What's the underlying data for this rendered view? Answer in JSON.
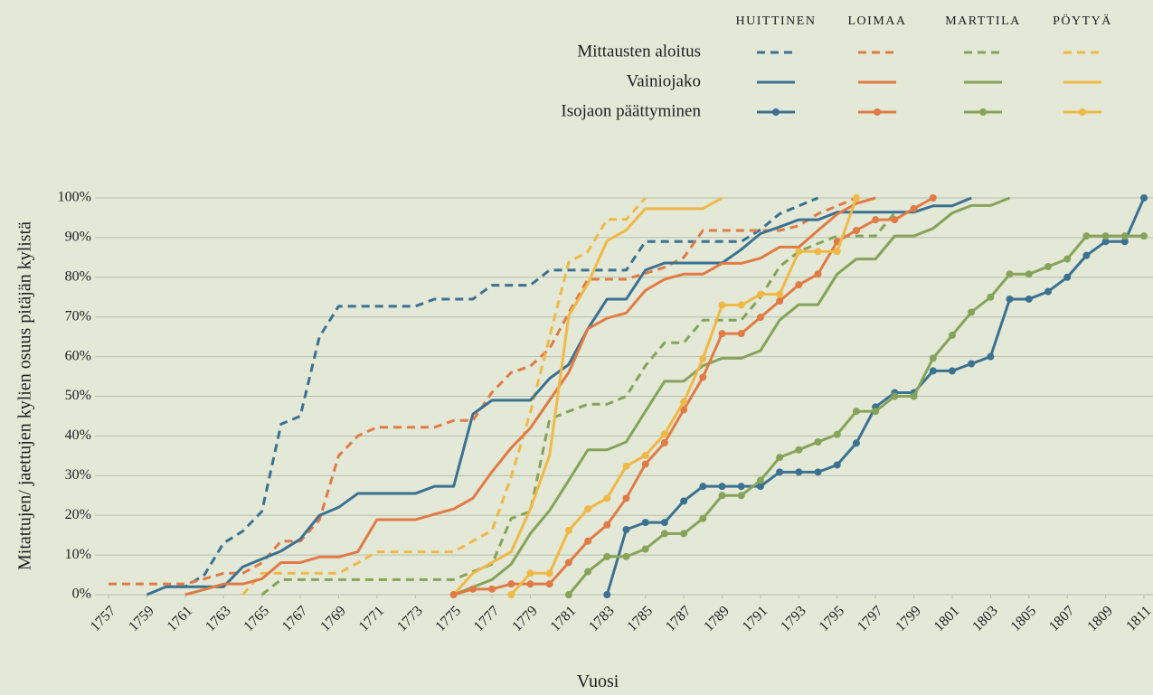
{
  "chart_data": {
    "type": "line",
    "xlabel": "Vuosi",
    "ylabel": "Mitattujen/ jaettujen kylien osuus pitäjän kylistä",
    "grid": true,
    "x": [
      1757,
      1758,
      1759,
      1760,
      1761,
      1762,
      1763,
      1764,
      1765,
      1766,
      1767,
      1768,
      1769,
      1770,
      1771,
      1772,
      1773,
      1774,
      1775,
      1776,
      1777,
      1778,
      1779,
      1780,
      1781,
      1782,
      1783,
      1784,
      1785,
      1786,
      1787,
      1788,
      1789,
      1790,
      1791,
      1792,
      1793,
      1794,
      1795,
      1796,
      1797,
      1798,
      1799,
      1800,
      1801,
      1802,
      1803,
      1804,
      1805,
      1806,
      1807,
      1808,
      1809,
      1810,
      1811
    ],
    "xlim": [
      1757,
      1811
    ],
    "xticks": [
      1757,
      1759,
      1761,
      1763,
      1765,
      1767,
      1769,
      1771,
      1773,
      1775,
      1777,
      1779,
      1781,
      1783,
      1785,
      1787,
      1789,
      1791,
      1793,
      1795,
      1797,
      1799,
      1801,
      1803,
      1805,
      1807,
      1809,
      1811
    ],
    "ylim": [
      0,
      100
    ],
    "yticks": [
      {
        "value": 0,
        "label": "0%"
      },
      {
        "value": 10,
        "label": "10%"
      },
      {
        "value": 20,
        "label": "20%"
      },
      {
        "value": 30,
        "label": "30%"
      },
      {
        "value": 40,
        "label": "40%"
      },
      {
        "value": 50,
        "label": "50%"
      },
      {
        "value": 60,
        "label": "60%"
      },
      {
        "value": 70,
        "label": "70%"
      },
      {
        "value": 80,
        "label": "80%"
      },
      {
        "value": 90,
        "label": "90%"
      },
      {
        "value": 100,
        "label": "100%"
      }
    ],
    "places": [
      {
        "name": "HUITTINEN",
        "color": "#3b7191"
      },
      {
        "name": "LOIMAA",
        "color": "#e07b45"
      },
      {
        "name": "MARTTILA",
        "color": "#86a35a"
      },
      {
        "name": "PÖYTYÄ",
        "color": "#efb947"
      }
    ],
    "measures": [
      {
        "name": "Mittausten aloitus",
        "dash": true,
        "markers": false,
        "values": [
          [
            null,
            null,
            null,
            2,
            2,
            5,
            13,
            16,
            21,
            43,
            45,
            65,
            72.7,
            72.7,
            72.7,
            72.7,
            72.7,
            74.5,
            74.5,
            74.5,
            78,
            78,
            78,
            81.8,
            81.8,
            81.8,
            81.8,
            81.8,
            89,
            89,
            89,
            89,
            89,
            89,
            92,
            96,
            98,
            100,
            null,
            null,
            null,
            null,
            null,
            null,
            null,
            null,
            null,
            null,
            null,
            null,
            null,
            null,
            null,
            null,
            null
          ],
          [
            2.7,
            2.7,
            2.7,
            2.7,
            2.7,
            4,
            5.4,
            5.4,
            8,
            13.5,
            13.5,
            18.9,
            35,
            40,
            42.2,
            42.2,
            42.2,
            42.2,
            43.9,
            43.9,
            51,
            56,
            57.6,
            62,
            71,
            79.5,
            79.5,
            79.5,
            81,
            82.5,
            85,
            91.8,
            91.8,
            91.8,
            91.8,
            91.8,
            93,
            96,
            98,
            100,
            null,
            null,
            null,
            null,
            null,
            null,
            null,
            null,
            null,
            null,
            null,
            null,
            null,
            null,
            null
          ],
          [
            null,
            null,
            null,
            null,
            null,
            null,
            null,
            null,
            0,
            3.8,
            3.8,
            3.8,
            3.8,
            3.8,
            3.8,
            3.8,
            3.8,
            3.8,
            3.8,
            5.8,
            7.7,
            19.2,
            21,
            44.2,
            46.2,
            48,
            48,
            50,
            57.7,
            63.5,
            63.5,
            69.2,
            69.2,
            69.2,
            75,
            82.7,
            86.5,
            88.5,
            90.4,
            90.4,
            90.4,
            96.2,
            null,
            null,
            null,
            null,
            null,
            null,
            null,
            null,
            null,
            null,
            null,
            null,
            null
          ],
          [
            null,
            null,
            null,
            null,
            null,
            null,
            null,
            0,
            5.4,
            5.4,
            5.4,
            5.4,
            5.4,
            8,
            10.8,
            10.8,
            10.8,
            10.8,
            10.8,
            13.5,
            16.2,
            29.7,
            45.9,
            64.9,
            83.8,
            86.5,
            94.6,
            94.6,
            100,
            null,
            null,
            null,
            null,
            null,
            null,
            null,
            null,
            null,
            null,
            null,
            null,
            null,
            null,
            null,
            null,
            null,
            null,
            null,
            null,
            null,
            null,
            null,
            null,
            null,
            null
          ]
        ]
      },
      {
        "name": "Vainiojako",
        "dash": false,
        "markers": false,
        "values": [
          [
            null,
            null,
            0,
            2,
            2,
            2,
            2,
            7,
            9,
            11,
            14,
            20,
            22,
            25.5,
            25.5,
            25.5,
            25.5,
            27.3,
            27.3,
            45.5,
            49,
            49,
            49,
            54.5,
            58,
            67,
            74.5,
            74.5,
            81.8,
            83.6,
            83.6,
            83.6,
            83.6,
            87,
            91,
            92.7,
            94.5,
            94.5,
            96.4,
            96.4,
            96.4,
            96.4,
            96.4,
            98,
            98,
            100,
            null,
            null,
            null,
            null,
            null,
            null,
            null,
            null,
            null
          ],
          [
            null,
            null,
            null,
            null,
            0,
            1.3,
            2.7,
            2.7,
            4,
            8.1,
            8.1,
            9.5,
            9.5,
            10.8,
            18.9,
            18.9,
            18.9,
            20.3,
            21.6,
            24.3,
            31,
            37,
            42,
            49,
            56,
            67,
            69.7,
            71,
            76.7,
            79.5,
            80.8,
            80.8,
            83.5,
            83.5,
            84.8,
            87.6,
            87.6,
            91.8,
            95.9,
            98.6,
            100,
            null,
            null,
            null,
            null,
            null,
            null,
            null,
            null,
            null,
            null,
            null,
            null,
            null,
            null
          ],
          [
            null,
            null,
            null,
            null,
            null,
            null,
            null,
            null,
            null,
            null,
            null,
            null,
            null,
            null,
            null,
            null,
            null,
            null,
            0,
            1.9,
            3.8,
            7.7,
            15.4,
            21.2,
            28.8,
            36.5,
            36.5,
            38.5,
            46.2,
            53.8,
            53.8,
            57.7,
            59.6,
            59.6,
            61.5,
            69.2,
            73.1,
            73.1,
            80.8,
            84.6,
            84.6,
            90.4,
            90.4,
            92.3,
            96.2,
            98.1,
            98.1,
            100,
            null,
            null,
            null,
            null,
            null,
            null,
            null
          ],
          [
            null,
            null,
            null,
            null,
            null,
            null,
            null,
            null,
            null,
            null,
            null,
            null,
            null,
            null,
            null,
            null,
            null,
            null,
            0,
            5.4,
            8.1,
            10.8,
            21.6,
            35.1,
            70.3,
            78.4,
            89.2,
            91.9,
            97.3,
            97.3,
            97.3,
            97.3,
            100,
            null,
            null,
            null,
            null,
            null,
            null,
            null,
            null,
            null,
            null,
            null,
            null,
            null,
            null,
            null,
            null,
            null,
            null,
            null,
            null,
            null,
            null
          ]
        ]
      },
      {
        "name": "Isojaon päättyminen",
        "dash": false,
        "markers": true,
        "values": [
          [
            null,
            null,
            null,
            null,
            null,
            null,
            null,
            null,
            null,
            null,
            null,
            null,
            null,
            null,
            null,
            null,
            null,
            null,
            null,
            null,
            null,
            null,
            null,
            null,
            null,
            null,
            0,
            16.4,
            18.2,
            18.2,
            23.6,
            27.3,
            27.3,
            27.3,
            27.3,
            30.9,
            30.9,
            30.9,
            32.7,
            38.2,
            47.3,
            50.9,
            50.9,
            56.4,
            56.4,
            58.2,
            60,
            74.5,
            74.5,
            76.4,
            80,
            85.5,
            89,
            89,
            100
          ],
          [
            null,
            null,
            null,
            null,
            null,
            null,
            null,
            null,
            null,
            null,
            null,
            null,
            null,
            null,
            null,
            null,
            null,
            null,
            0,
            1.4,
            1.4,
            2.7,
            2.7,
            2.7,
            8.1,
            13.5,
            17.6,
            24.3,
            32.9,
            38.3,
            46.6,
            54.8,
            65.8,
            65.8,
            69.9,
            74,
            78.1,
            80.8,
            89,
            91.8,
            94.5,
            94.5,
            97.3,
            100,
            null,
            null,
            null,
            null,
            null,
            null,
            null,
            null,
            null,
            null,
            null
          ],
          [
            null,
            null,
            null,
            null,
            null,
            null,
            null,
            null,
            null,
            null,
            null,
            null,
            null,
            null,
            null,
            null,
            null,
            null,
            null,
            null,
            null,
            null,
            null,
            null,
            0,
            5.8,
            9.6,
            9.6,
            11.5,
            15.4,
            15.4,
            19.2,
            25,
            25,
            28.8,
            34.6,
            36.5,
            38.5,
            40.4,
            46.2,
            46.2,
            50,
            50,
            59.6,
            65.4,
            71.2,
            75,
            80.8,
            80.8,
            82.7,
            84.6,
            90.4,
            90.4,
            90.4,
            90.4
          ],
          [
            null,
            null,
            null,
            null,
            null,
            null,
            null,
            null,
            null,
            null,
            null,
            null,
            null,
            null,
            null,
            null,
            null,
            null,
            null,
            null,
            null,
            0,
            5.4,
            5.4,
            16.2,
            21.6,
            24.3,
            32.4,
            35.1,
            40.5,
            48.6,
            59.5,
            73,
            73,
            75.7,
            75.7,
            86.5,
            86.5,
            86.5,
            100,
            null,
            null,
            null,
            null,
            null,
            null,
            null,
            null,
            null,
            null,
            null,
            null,
            null,
            null,
            null
          ]
        ]
      }
    ]
  }
}
